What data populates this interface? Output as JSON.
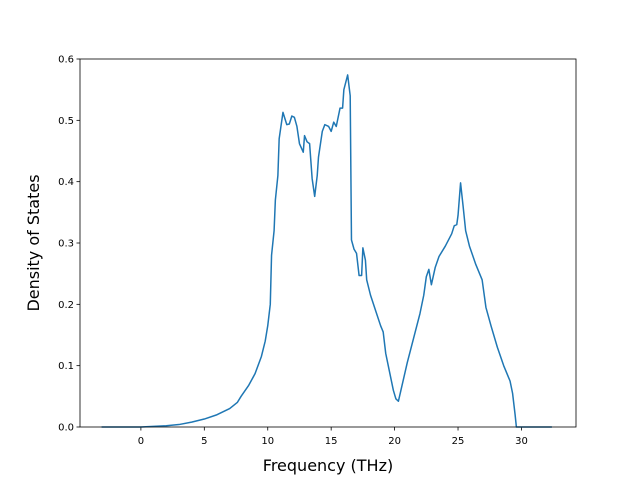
{
  "chart_data": {
    "type": "line",
    "xlabel": "Frequency (THz)",
    "ylabel": "Density of States",
    "color": "#1f77b4",
    "xlim": [
      -4.8,
      34.3
    ],
    "ylim": [
      0,
      0.6
    ],
    "xticks": [
      0,
      5,
      10,
      15,
      20,
      25,
      30
    ],
    "yticks": [
      {
        "value": 0,
        "label": "0.0"
      },
      0.1,
      0.2,
      0.3,
      0.4,
      0.5,
      0.6
    ],
    "x": [
      -3.1,
      0,
      2,
      3,
      4,
      5,
      6,
      7,
      7.6,
      7.9,
      8.5,
      9,
      9.5,
      9.8,
      10,
      10.2,
      10.3,
      10.5,
      10.6,
      10.8,
      10.9,
      11.2,
      11.5,
      11.7,
      11.9,
      12.1,
      12.3,
      12.5,
      12.8,
      12.9,
      13.1,
      13.3,
      13.5,
      13.7,
      13.9,
      14,
      14.3,
      14.5,
      14.8,
      15,
      15.2,
      15.4,
      15.7,
      15.9,
      16,
      16.3,
      16.5,
      16.6,
      16.8,
      17,
      17.2,
      17.4,
      17.5,
      17.7,
      17.8,
      18.1,
      18.5,
      18.9,
      19.1,
      19.3,
      19.7,
      19.9,
      20.1,
      20.3,
      20.5,
      21,
      21.5,
      22,
      22.3,
      22.5,
      22.7,
      22.9,
      23.2,
      23.5,
      24,
      24.5,
      24.7,
      24.9,
      25.0,
      25.2,
      25.4,
      25.6,
      25.9,
      26.4,
      26.9,
      27.2,
      27.6,
      28.1,
      28.6,
      29.1,
      29.3,
      29.5,
      29.6,
      32.4
    ],
    "values": [
      0,
      0,
      0.002,
      0.004,
      0.008,
      0.013,
      0.02,
      0.03,
      0.04,
      0.05,
      0.068,
      0.087,
      0.115,
      0.14,
      0.165,
      0.2,
      0.28,
      0.32,
      0.37,
      0.41,
      0.47,
      0.513,
      0.493,
      0.494,
      0.507,
      0.505,
      0.49,
      0.462,
      0.448,
      0.475,
      0.465,
      0.462,
      0.405,
      0.376,
      0.41,
      0.44,
      0.482,
      0.493,
      0.49,
      0.482,
      0.497,
      0.49,
      0.52,
      0.52,
      0.55,
      0.574,
      0.54,
      0.305,
      0.29,
      0.283,
      0.247,
      0.247,
      0.292,
      0.272,
      0.24,
      0.215,
      0.19,
      0.165,
      0.155,
      0.12,
      0.08,
      0.06,
      0.046,
      0.042,
      0.06,
      0.105,
      0.145,
      0.185,
      0.215,
      0.245,
      0.257,
      0.232,
      0.26,
      0.278,
      0.295,
      0.315,
      0.328,
      0.33,
      0.345,
      0.398,
      0.36,
      0.32,
      0.295,
      0.265,
      0.24,
      0.195,
      0.165,
      0.13,
      0.1,
      0.075,
      0.055,
      0.02,
      0,
      0
    ]
  }
}
